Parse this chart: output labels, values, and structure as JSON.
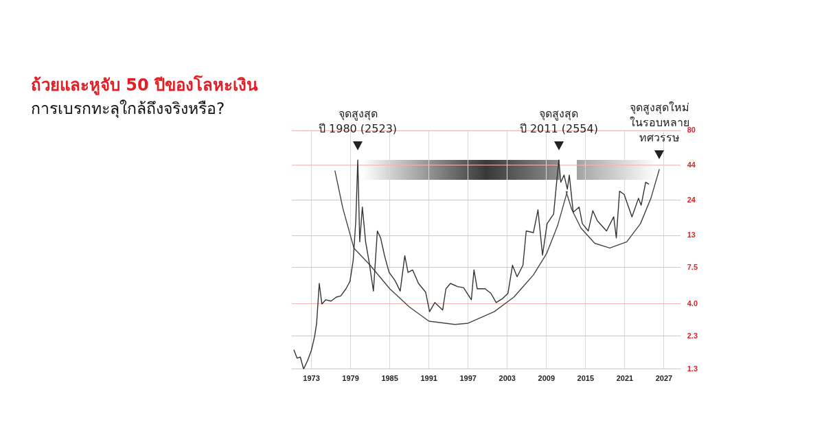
{
  "chart_data": {
    "type": "line",
    "title": "ถ้วยและหูจับ 50 ปีของโลหะเงิน",
    "subtitle": "การเบรกทะลุใกล้ถึงจริงหรือ?",
    "log": "y",
    "grid": true,
    "legend": false,
    "marker": "none",
    "line_style": "solid",
    "xlim": [
      1970,
      2029.5
    ],
    "xticks": [
      1973,
      1979,
      1985,
      1991,
      1997,
      2003,
      2009,
      2015,
      2021,
      2027
    ],
    "ylim": [
      1.3,
      80
    ],
    "yticks": [
      1.3,
      2.3,
      {
        "value": 4,
        "label": "4.0"
      },
      7.5,
      13,
      24,
      44,
      80
    ],
    "series": [
      {
        "color": "#333333",
        "x": [
          1970.3,
          1970.8,
          1971.3,
          1971.8,
          1972.4,
          1973,
          1973.5,
          1973.8,
          1974.2,
          1974.6,
          1975.2,
          1976,
          1976.8,
          1977.5,
          1978.3,
          1978.9,
          1979.4,
          1979.8,
          1980.1,
          1980.4,
          1980.8,
          1981.3,
          1981.8,
          1982.5,
          1983.1,
          1983.6,
          1984.2,
          1984.9,
          1985.8,
          1986.6,
          1987.3,
          1987.8,
          1988.5,
          1989.4,
          1990.5,
          1991.1,
          1991.9,
          1993.1,
          1993.6,
          1994.3,
          1995.4,
          1996.3,
          1997.5,
          1997.9,
          1998.4,
          1999.6,
          2000.5,
          2001.3,
          2002.3,
          2003.1,
          2003.8,
          2004.5,
          2005.4,
          2005.9,
          2007,
          2007.7,
          2008.4,
          2009.1,
          2010.1,
          2010.5,
          2010.9,
          2011.2,
          2011.7,
          2012.2,
          2012.5,
          2013.1,
          2014,
          2014.5,
          2015.4,
          2016.1,
          2016.8,
          2018.2,
          2019.3,
          2019.7,
          2020.2,
          2020.9,
          2022.1,
          2023.1,
          2023.5,
          2024.2,
          2024.7
        ],
        "values": [
          1.82,
          1.57,
          1.6,
          1.3,
          1.5,
          1.8,
          2.3,
          2.87,
          5.7,
          4,
          4.3,
          4.2,
          4.5,
          4.6,
          5.2,
          5.9,
          8.5,
          16.8,
          48,
          11.7,
          21.3,
          11.7,
          8.5,
          5,
          14.1,
          12.5,
          9.2,
          6.9,
          6,
          5,
          9.2,
          6.9,
          7.2,
          5.7,
          4.9,
          3.5,
          4.1,
          3.6,
          5.2,
          5.7,
          5.4,
          5.3,
          4.3,
          7.2,
          5.2,
          5.2,
          4.8,
          4.1,
          4.4,
          4.8,
          7.8,
          6.4,
          7.8,
          14.1,
          13.7,
          20.3,
          9.3,
          16,
          18.9,
          30.4,
          48,
          32.7,
          37,
          29,
          37,
          19.5,
          21.3,
          16,
          14.1,
          20,
          16.8,
          14.1,
          18,
          12.5,
          28,
          26.5,
          18,
          24.8,
          22,
          32.7,
          31.6
        ]
      },
      {
        "type": "line",
        "color": "#444444",
        "x": [
          1976.6,
          1977.8,
          1979.5,
          1982,
          1985,
          1988,
          1991,
          1995,
          1997,
          2001,
          2004,
          2007,
          2009,
          2010.7,
          2012.2
        ],
        "values": [
          40,
          21,
          10.5,
          7.8,
          5.2,
          3.8,
          2.97,
          2.81,
          2.87,
          3.5,
          4.5,
          6.6,
          9.5,
          15.4,
          28
        ]
      },
      {
        "type": "line",
        "color": "#444444",
        "x": [
          2012,
          2012.9,
          2014.3,
          2016.4,
          2018.7,
          2021.3,
          2023.4,
          2025,
          2026.3
        ],
        "values": [
          28,
          20.3,
          14.8,
          11.4,
          10.5,
          11.7,
          16,
          24.8,
          41
        ]
      }
    ],
    "annotations": [
      {
        "text": "จุดสูงสุด\nปี 1980 (2523)",
        "x": 1980.1,
        "y": 48
      },
      {
        "text": "จุดสูงสุด\nปี 2011 (2554)",
        "x": 2010.9,
        "y": 48
      },
      {
        "text": "จุดสูงสุดใหม่\nในรอบหลาย\nทศวรรษ",
        "x": 2026.3,
        "y": 41
      }
    ]
  }
}
